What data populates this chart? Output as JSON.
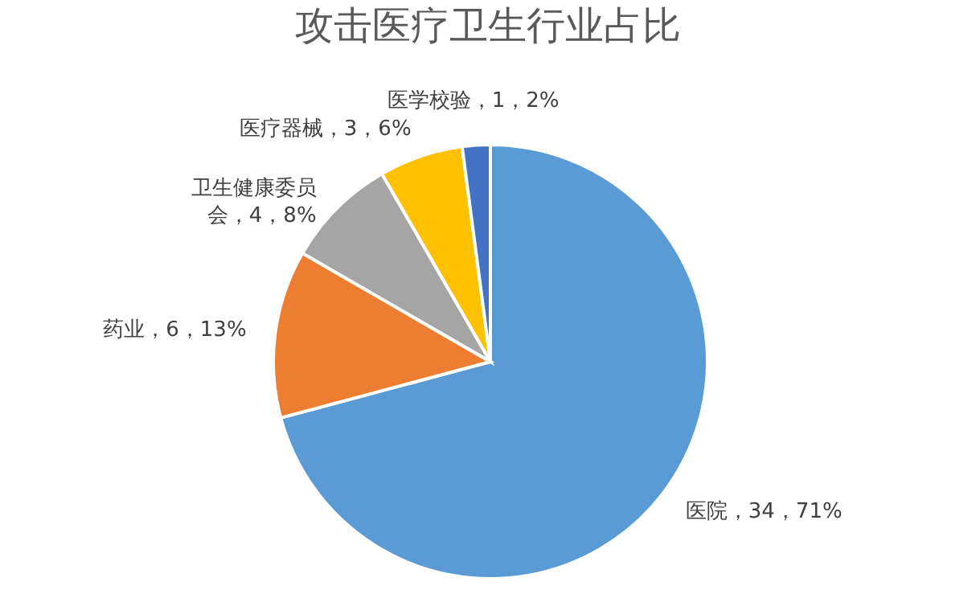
{
  "chart_data": {
    "type": "pie",
    "title": "攻击医疗卫生行业占比",
    "categories": [
      "医院",
      "药业",
      "卫生健康委员会",
      "医疗器械",
      "医学校验"
    ],
    "values": [
      34,
      6,
      4,
      3,
      1
    ],
    "colors": [
      "#5b9bd5",
      "#ed7d31",
      "#a5a5a5",
      "#ffc000",
      "#4472c4"
    ],
    "value_labels": [
      "34，71%",
      "6，13%",
      "4，8%",
      "3，6%",
      "1，2%"
    ],
    "legend": false
  }
}
